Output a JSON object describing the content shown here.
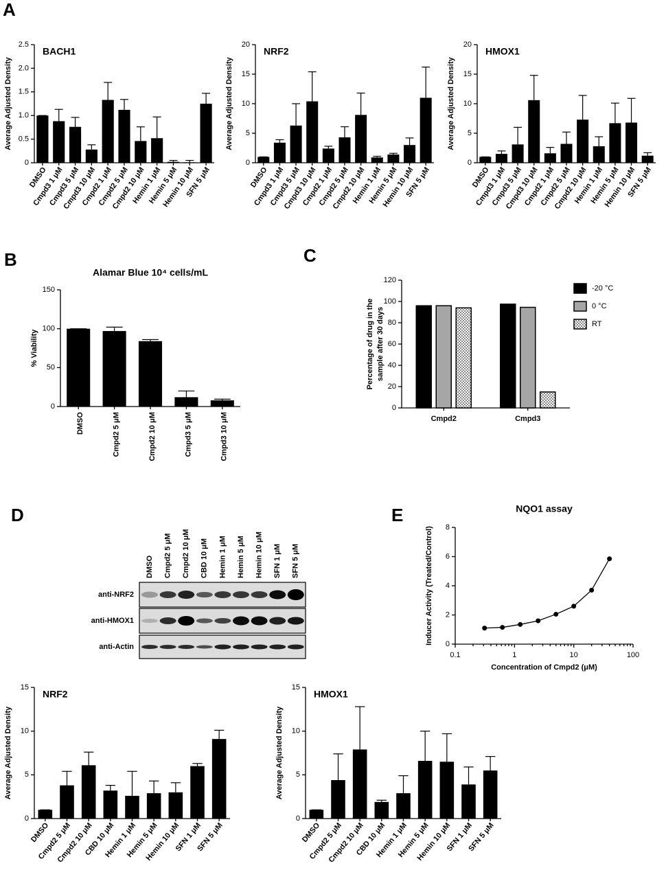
{
  "panels": [
    "A",
    "B",
    "C",
    "D",
    "E"
  ],
  "blot": {
    "lanes": [
      "DMSO",
      "Cmpd2 5 μM",
      "Cmpd2 10 μM",
      "CBD 10 μM",
      "Hemin 1 μM",
      "Hemin 5 μM",
      "Hemin 10 μM",
      "SFN 1 μM",
      "SFN 5 μM"
    ],
    "rows": [
      "anti-NRF2",
      "anti-HMOX1",
      "anti-Actin"
    ]
  },
  "chart_data": [
    {
      "type": "bar",
      "title": "BACH1",
      "ylabel": "Average Adjusted Density",
      "categories": [
        "DMSO",
        "Cmpd3 1 μM",
        "Cmpd3 5 μM",
        "Cmpd3 10 μM",
        "Cmpd2 1 μM",
        "Cmpd2 5 μM",
        "Cmpd2 10 μM",
        "Hemin 1 μM",
        "Hemin 5 μM",
        "Hemin 10 μM",
        "SFN 5 μM"
      ],
      "values": [
        1.0,
        0.88,
        0.76,
        0.28,
        1.33,
        1.12,
        0.46,
        0.52,
        0.02,
        0.01,
        1.25
      ],
      "error": [
        0,
        0.25,
        0.2,
        0.1,
        0.37,
        0.22,
        0.3,
        0.45,
        0.03,
        0.04,
        0.22
      ],
      "color": "#000000",
      "ylim": [
        0,
        2.5
      ],
      "yticks": [
        0,
        0.5,
        {
          "value": 1,
          "label": "1.0"
        },
        1.5,
        {
          "value": 2,
          "label": "2.0"
        },
        2.5
      ]
    },
    {
      "type": "bar",
      "title": "NRF2",
      "ylabel": "Average Adjusted Density",
      "categories": [
        "DMSO",
        "Cmpd3 1 μM",
        "Cmpd3 5 μM",
        "Cmpd3 10 μM",
        "Cmpd2 1 μM",
        "Cmpd2 5 μM",
        "Cmpd2 10 μM",
        "Hemin 1 μM",
        "Hemin 5 μM",
        "Hemin 10 μM",
        "SFN 5 μM"
      ],
      "values": [
        1,
        3.4,
        6.3,
        10.4,
        2.4,
        4.3,
        8.1,
        0.9,
        1.4,
        3.0,
        11.0
      ],
      "error": [
        0,
        0.5,
        3.7,
        5.0,
        0.4,
        1.8,
        3.7,
        0.2,
        0.2,
        1.2,
        5.2
      ],
      "color": "#000000",
      "ylim": [
        0,
        20
      ],
      "yticks": [
        0,
        5,
        10,
        15,
        20
      ]
    },
    {
      "type": "bar",
      "title": "HMOX1",
      "ylabel": "Average Adjusted Density",
      "categories": [
        "DMSO",
        "Cmpd3 1 μM",
        "Cmpd3 5 μM",
        "Cmpd3 10 μM",
        "Cmpd2 1 μM",
        "Cmpd2 5 μM",
        "Cmpd2 10 μM",
        "Hemin 1 μM",
        "Hemin 5 μM",
        "Hemin 10 μM",
        "SFN 5 μM"
      ],
      "values": [
        1,
        1.5,
        3.1,
        10.6,
        1.6,
        3.2,
        7.3,
        2.8,
        6.7,
        6.8,
        1.2
      ],
      "error": [
        0,
        0.5,
        2.9,
        4.2,
        1.0,
        2.0,
        4.1,
        1.6,
        3.4,
        4.1,
        0.5
      ],
      "color": "#000000",
      "ylim": [
        0,
        20
      ],
      "yticks": [
        0,
        5,
        10,
        15,
        20
      ]
    },
    {
      "type": "bar",
      "title": "Alamar Blue 10⁴ cells/mL",
      "ylabel": "% Viability",
      "categories": [
        "DMSO",
        "Cmpd2 5 μM",
        "Cmpd2 10 μM",
        "Cmpd3 5 μM",
        "Cmpd3 10 μM"
      ],
      "values": [
        100,
        97,
        84,
        12,
        8
      ],
      "error": [
        0,
        5,
        2,
        8,
        1.5
      ],
      "color": "#000000",
      "ylim": [
        0,
        150
      ],
      "yticks": [
        0,
        50,
        100,
        150
      ]
    },
    {
      "type": "grouped_bar",
      "ylabel": [
        "Percentage of drug in the",
        "sample after 30 days"
      ],
      "categories": [
        "Cmpd2",
        "Cmpd3"
      ],
      "series": [
        {
          "name": "-20 °C",
          "color": "#000000",
          "values": [
            96,
            97.5
          ]
        },
        {
          "name": "0 °C",
          "color": "#a6a6a6",
          "values": [
            96,
            94.5
          ]
        },
        {
          "name": "RT",
          "color": "#ffffff",
          "pattern": "checker",
          "values": [
            94,
            15
          ]
        }
      ],
      "ylim": [
        0,
        120
      ],
      "yticks": [
        0,
        20,
        40,
        60,
        80,
        100,
        120
      ],
      "legend": "right"
    },
    {
      "type": "bar",
      "title": "NRF2",
      "ylabel": "Average Adjusted Density",
      "categories": [
        "DMSO",
        "Cmpd2 5 μM",
        "Cmpd2 10 μM",
        "CBD 10 μM",
        "Hemin 1 μM",
        "Hemin 5 μM",
        "Hemin 10 μM",
        "SFN 1 μM",
        "SFN 5 μM"
      ],
      "values": [
        1,
        3.8,
        6.1,
        3.2,
        2.6,
        2.9,
        3.0,
        6.0,
        9.1
      ],
      "error": [
        0,
        1.6,
        1.5,
        0.6,
        2.8,
        1.4,
        1.1,
        0.3,
        1.0
      ],
      "color": "#000000",
      "ylim": [
        0,
        15
      ],
      "yticks": [
        0,
        5,
        10,
        15
      ]
    },
    {
      "type": "bar",
      "title": "HMOX1",
      "ylabel": "Average Adjusted Density",
      "categories": [
        "DMSO",
        "Cmpd2 5 μM",
        "Cmpd2 10 μM",
        "CBD 10 μM",
        "Hemin 1 μM",
        "Hemin 5 μM",
        "Hemin 10 μM",
        "SFN 1 μM",
        "SFN 5 μM"
      ],
      "values": [
        1,
        4.4,
        7.9,
        1.9,
        2.9,
        6.6,
        6.5,
        3.9,
        5.5
      ],
      "error": [
        0,
        3.0,
        4.9,
        0.2,
        2.0,
        3.4,
        3.2,
        2.0,
        1.6
      ],
      "color": "#000000",
      "ylim": [
        0,
        15
      ],
      "yticks": [
        0,
        5,
        10,
        15
      ]
    },
    {
      "type": "line",
      "title": "NQO1 assay",
      "xlabel": "Concentration of Cmpd2 (μM)",
      "ylabel": "Inducer Activity (Treated/Control)",
      "x": [
        0.3125,
        0.625,
        1.25,
        2.5,
        5,
        10,
        20,
        40
      ],
      "y": [
        1.1,
        1.15,
        1.35,
        1.6,
        2.05,
        2.6,
        3.7,
        5.85
      ],
      "color": "#000000",
      "xscale": "log",
      "xlim": [
        0.1,
        100
      ],
      "xticks": [
        0.1,
        1,
        10,
        100
      ],
      "ylim": [
        0,
        8
      ],
      "yticks": [
        0,
        2,
        4,
        6,
        8
      ]
    }
  ]
}
